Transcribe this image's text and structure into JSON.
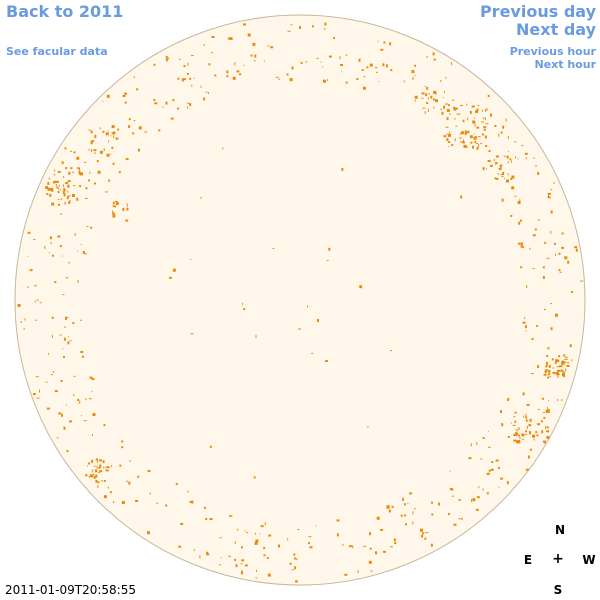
{
  "nav": {
    "back": "Back to 2011",
    "facular": "See facular data",
    "prev_day": "Previous day",
    "next_day": "Next day",
    "prev_hour": "Previous hour",
    "next_hour": "Next hour"
  },
  "compass": {
    "north": "N",
    "east": "E",
    "center": "+",
    "west": "W",
    "south": "S"
  },
  "timestamp": "2011-01-09T20:58:55",
  "colors": {
    "disk_fill": "#fff8ea",
    "disk_edge": "#c8b69e",
    "facula": "#e98a0c",
    "link": "#6a9ae0"
  }
}
